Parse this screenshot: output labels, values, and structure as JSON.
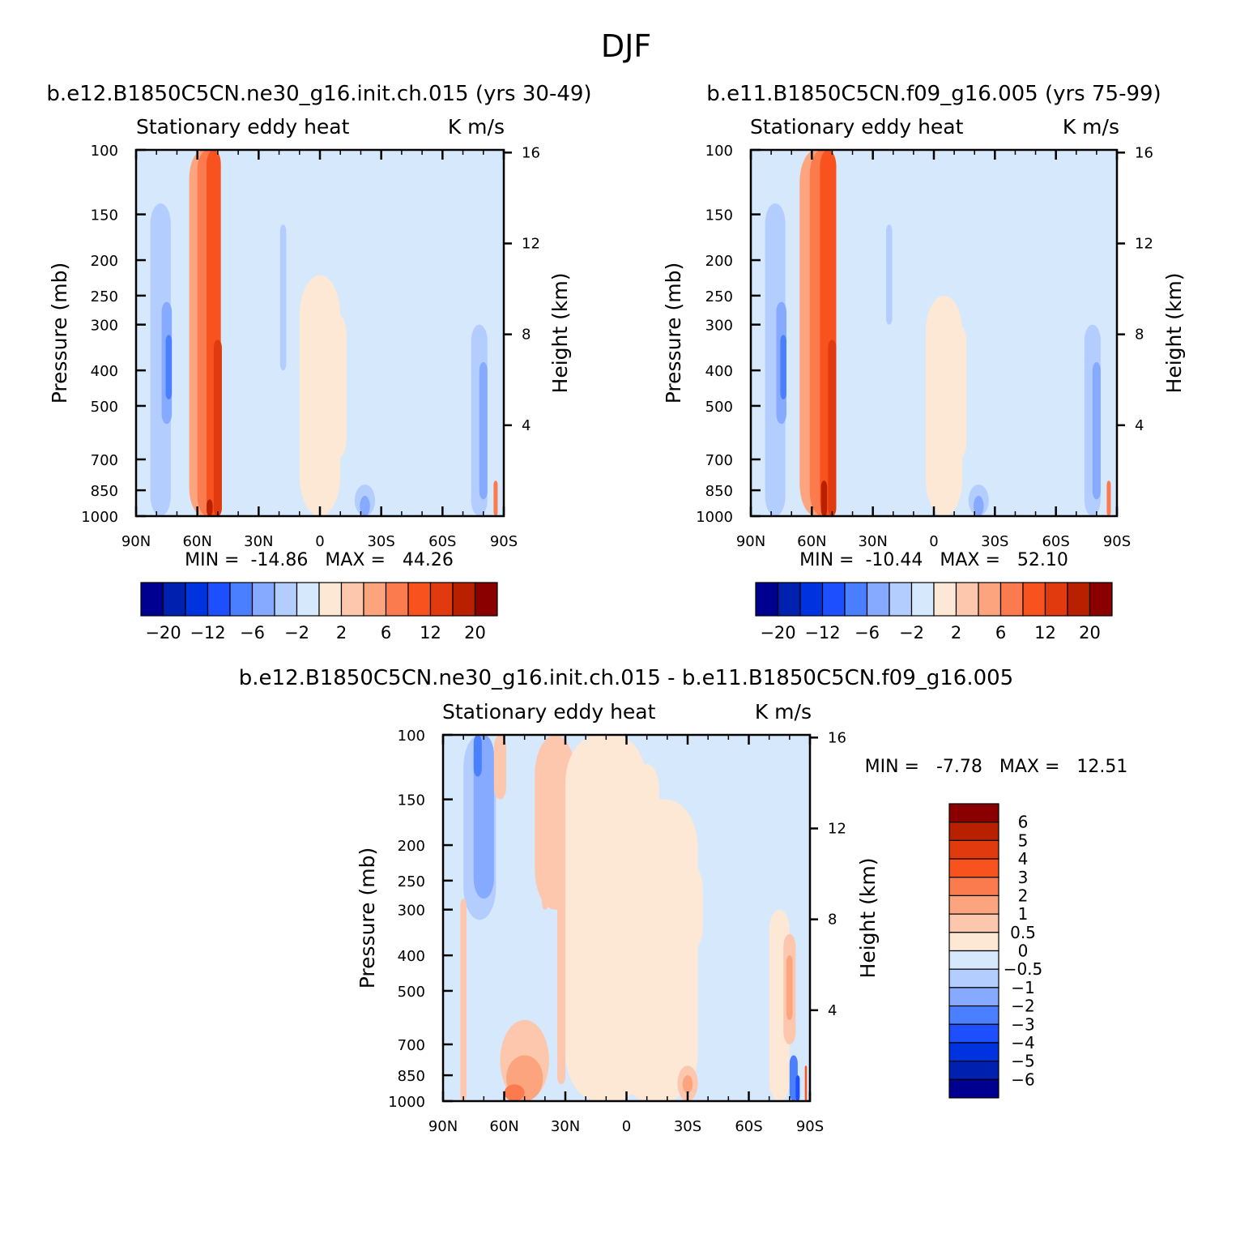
{
  "figure": {
    "main_title": "DJF"
  },
  "chart_data": [
    {
      "type": "heatmap",
      "id": "panel1",
      "title": "b.e12.B1850C5CN.ne30_g16.init.ch.015 (yrs 30-49)",
      "left_label": "Stationary eddy heat",
      "right_label": "K m/s",
      "ylabel": "Pressure (mb)",
      "ylabel_right": "Height (km)",
      "x_ticks": [
        "90N",
        "60N",
        "30N",
        "0",
        "30S",
        "60S",
        "90S"
      ],
      "x_range": [
        90,
        -90
      ],
      "y_ticks": [
        100,
        150,
        200,
        250,
        300,
        400,
        500,
        700,
        850,
        1000
      ],
      "y_range": [
        100,
        1000
      ],
      "y_scale": "log",
      "height_ticks": [
        16,
        12,
        8,
        4
      ],
      "stats_text": "MIN =  -14.86   MAX =   44.26",
      "min": -14.86,
      "max": 44.26,
      "colorbar_labels": [
        "-20",
        "-12",
        "-6",
        "-2",
        "2",
        "6",
        "12",
        "20"
      ],
      "colorbar_colors": [
        "#000090",
        "#0020b0",
        "#0033e0",
        "#1e4fff",
        "#4a80ff",
        "#86aaff",
        "#b4cdff",
        "#d6e8fc",
        "#fde8d6",
        "#fdc7ad",
        "#fca47e",
        "#fb7a4e",
        "#f8521f",
        "#e03a0e",
        "#b82000",
        "#8a0000"
      ]
    },
    {
      "type": "heatmap",
      "id": "panel2",
      "title": "b.e11.B1850C5CN.f09_g16.005 (yrs 75-99)",
      "left_label": "Stationary eddy heat",
      "right_label": "K m/s",
      "ylabel": "Pressure (mb)",
      "ylabel_right": "Height (km)",
      "x_ticks": [
        "90N",
        "60N",
        "30N",
        "0",
        "30S",
        "60S",
        "90S"
      ],
      "x_range": [
        90,
        -90
      ],
      "y_ticks": [
        100,
        150,
        200,
        250,
        300,
        400,
        500,
        700,
        850,
        1000
      ],
      "y_range": [
        100,
        1000
      ],
      "y_scale": "log",
      "height_ticks": [
        16,
        12,
        8,
        4
      ],
      "stats_text": "MIN =  -10.44   MAX =   52.10",
      "min": -10.44,
      "max": 52.1,
      "colorbar_labels": [
        "-20",
        "-12",
        "-6",
        "-2",
        "2",
        "6",
        "12",
        "20"
      ],
      "colorbar_colors": [
        "#000090",
        "#0020b0",
        "#0033e0",
        "#1e4fff",
        "#4a80ff",
        "#86aaff",
        "#b4cdff",
        "#d6e8fc",
        "#fde8d6",
        "#fdc7ad",
        "#fca47e",
        "#fb7a4e",
        "#f8521f",
        "#e03a0e",
        "#b82000",
        "#8a0000"
      ]
    },
    {
      "type": "heatmap",
      "id": "panel3",
      "title": "b.e12.B1850C5CN.ne30_g16.init.ch.015 - b.e11.B1850C5CN.f09_g16.005",
      "left_label": "Stationary eddy heat",
      "right_label": "K m/s",
      "ylabel": "Pressure (mb)",
      "ylabel_right": "Height (km)",
      "x_ticks": [
        "90N",
        "60N",
        "30N",
        "0",
        "30S",
        "60S",
        "90S"
      ],
      "x_range": [
        90,
        -90
      ],
      "y_ticks": [
        100,
        150,
        200,
        250,
        300,
        400,
        500,
        700,
        850,
        1000
      ],
      "y_range": [
        100,
        1000
      ],
      "y_scale": "log",
      "height_ticks": [
        16,
        12,
        8,
        4
      ],
      "stats_text": "MIN =   -7.78   MAX =   12.51",
      "min": -7.78,
      "max": 12.51,
      "colorbar_labels": [
        "6",
        "5",
        "4",
        "3",
        "2",
        "1",
        "0.5",
        "0",
        "-0.5",
        "-1",
        "-2",
        "-3",
        "-4",
        "-5",
        "-6"
      ],
      "colorbar_colors": [
        "#8a0000",
        "#b82000",
        "#e03a0e",
        "#f8521f",
        "#fb7a4e",
        "#fca47e",
        "#fdc7ad",
        "#fde8d6",
        "#d6e8fc",
        "#b4cdff",
        "#86aaff",
        "#4a80ff",
        "#1e4fff",
        "#0033e0",
        "#0020b0",
        "#000090"
      ]
    }
  ]
}
